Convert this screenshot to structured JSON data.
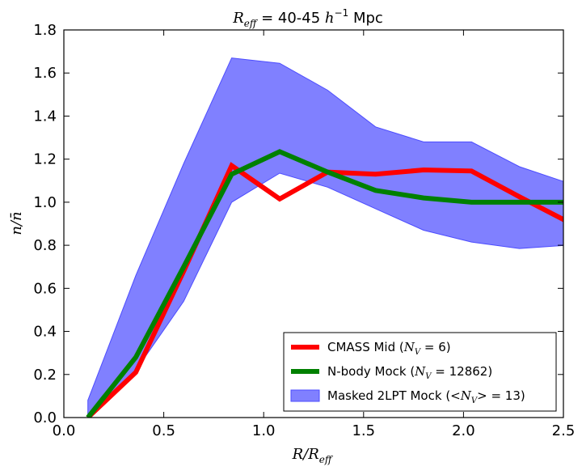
{
  "chart_data": {
    "type": "line",
    "title": {
      "prefix": "R",
      "sub": "eff",
      "middle": " = 40-45 ",
      "unit_h": "h",
      "unit_exp": "−1",
      "unit_tail": " Mpc"
    },
    "xlabel": {
      "main": "R/R",
      "sub": "eff"
    },
    "ylabel": "n/n̄",
    "xlim": [
      0.0,
      2.5
    ],
    "ylim": [
      0.0,
      1.8
    ],
    "xticks": [
      0.0,
      0.5,
      1.0,
      1.5,
      2.0,
      2.5
    ],
    "xtick_labels": [
      "0.0",
      "0.5",
      "1.0",
      "1.5",
      "2.0",
      "2.5"
    ],
    "yticks": [
      0.0,
      0.2,
      0.4,
      0.6,
      0.8,
      1.0,
      1.2,
      1.4,
      1.6,
      1.8
    ],
    "ytick_labels": [
      "0.0",
      "0.2",
      "0.4",
      "0.6",
      "0.8",
      "1.0",
      "1.2",
      "1.4",
      "1.6",
      "1.8"
    ],
    "x": [
      0.12,
      0.36,
      0.6,
      0.84,
      1.08,
      1.32,
      1.56,
      1.8,
      2.04,
      2.28,
      2.52
    ],
    "series": [
      {
        "name": "CMASS Mid",
        "color": "#ff0000",
        "values": [
          0.0,
          0.21,
          0.68,
          1.17,
          1.015,
          1.14,
          1.13,
          1.15,
          1.145,
          1.025,
          0.91
        ]
      },
      {
        "name": "N-body Mock",
        "color": "#008000",
        "values": [
          0.0,
          0.28,
          0.7,
          1.13,
          1.235,
          1.14,
          1.055,
          1.02,
          1.0,
          1.0,
          1.0
        ]
      }
    ],
    "band": {
      "name": "Masked 2LPT Mock",
      "fill": "#8080ff",
      "edge": "#4c4cff",
      "upper": [
        0.08,
        0.66,
        1.18,
        1.67,
        1.645,
        1.52,
        1.35,
        1.28,
        1.28,
        1.165,
        1.09
      ],
      "lower": [
        0.0,
        0.22,
        0.54,
        1.0,
        1.135,
        1.07,
        0.97,
        0.87,
        0.815,
        0.785,
        0.8
      ]
    },
    "legend": {
      "position": "lower-right",
      "entries": [
        {
          "label": "CMASS Mid (",
          "math": "N",
          "sub": "V",
          "tail": " = 6)"
        },
        {
          "label": "N-body Mock (",
          "math": "N",
          "sub": "V",
          "tail": " = 12862)"
        },
        {
          "label": "Masked 2LPT Mock (",
          "math": "<N",
          "sub": "V",
          "tail": "> = 13)"
        }
      ]
    }
  }
}
